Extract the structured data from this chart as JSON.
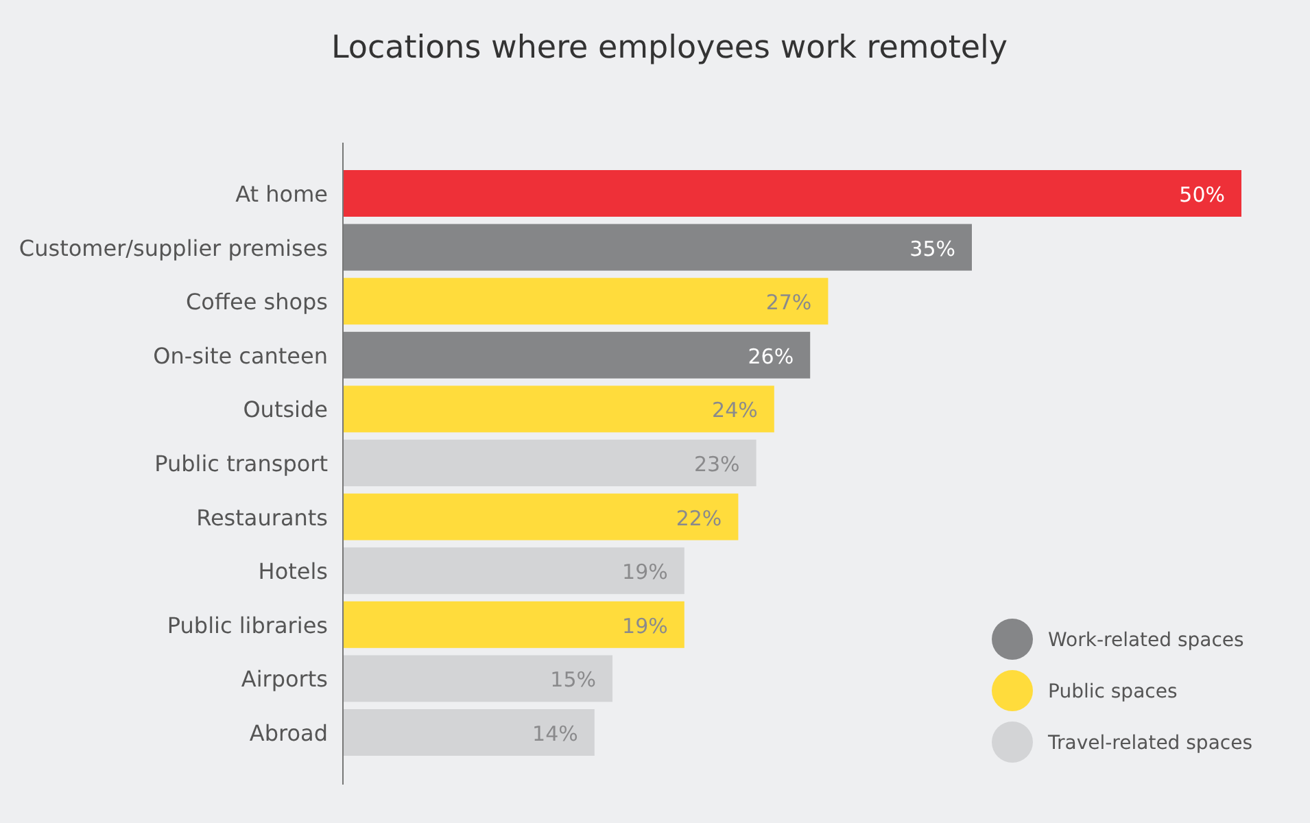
{
  "chart_data": {
    "type": "bar",
    "orientation": "horizontal",
    "title": "Locations where employees work remotely",
    "categories": [
      "At home",
      "Customer/supplier premises",
      "Coffee shops",
      "On-site canteen",
      "Outside",
      "Public transport",
      "Restaurants",
      "Hotels",
      "Public libraries",
      "Airports",
      "Abroad"
    ],
    "series": [
      {
        "color": "#ee3038",
        "values": [
          50,
          null,
          null,
          null,
          null,
          null,
          null,
          null,
          null,
          null,
          null
        ],
        "value_labels": [
          "50%",
          null,
          null,
          null,
          null,
          null,
          null,
          null,
          null,
          null,
          null
        ]
      },
      {
        "name": "Work-related spaces",
        "color": "#858688",
        "values": [
          null,
          35,
          null,
          26,
          null,
          null,
          null,
          null,
          null,
          null,
          null
        ],
        "value_labels": [
          null,
          "35%",
          null,
          "26%",
          null,
          null,
          null,
          null,
          null,
          null,
          null
        ]
      },
      {
        "name": "Public spaces",
        "color": "#ffdc3c",
        "values": [
          null,
          null,
          27,
          null,
          24,
          null,
          22,
          null,
          19,
          null,
          null
        ],
        "value_labels": [
          null,
          null,
          "27%",
          null,
          "24%",
          null,
          "22%",
          null,
          "19%",
          null,
          null
        ]
      },
      {
        "name": "Travel-related spaces",
        "color": "#d3d4d6",
        "values": [
          null,
          null,
          null,
          null,
          null,
          23,
          null,
          19,
          null,
          15,
          14
        ],
        "value_labels": [
          null,
          null,
          null,
          null,
          null,
          "23%",
          null,
          "19%",
          null,
          "15%",
          "14%"
        ]
      }
    ],
    "legend": "bottom right"
  }
}
